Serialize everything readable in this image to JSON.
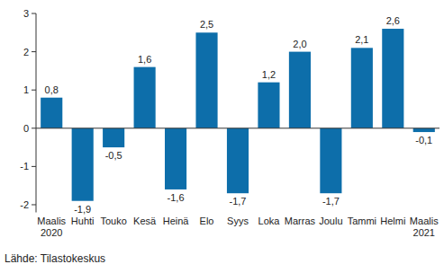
{
  "chart_data": {
    "type": "bar",
    "categories": [
      "Maalis 2020",
      "Huhti",
      "Touko",
      "Kesä",
      "Heinä",
      "Elo",
      "Syys",
      "Loka",
      "Marras",
      "Joulu",
      "Tammi",
      "Helmi",
      "Maalis 2021"
    ],
    "values": [
      0.8,
      -1.9,
      -0.5,
      1.6,
      -1.6,
      2.5,
      -1.7,
      1.2,
      2.0,
      -1.7,
      2.1,
      2.6,
      -0.1
    ],
    "value_labels": [
      "0,8",
      "-1,9",
      "-0,5",
      "1,6",
      "-1,6",
      "2,5",
      "-1,7",
      "1,2",
      "2,0",
      "-1,7",
      "2,1",
      "2,6",
      "-0,1"
    ],
    "color": "#0d6eaa",
    "ylim": [
      -2.2,
      3
    ],
    "yticks": [
      -2,
      -1,
      0,
      1,
      2,
      3
    ],
    "grid": false,
    "data_labels": true,
    "source": "Lähde: Tilastokeskus"
  }
}
